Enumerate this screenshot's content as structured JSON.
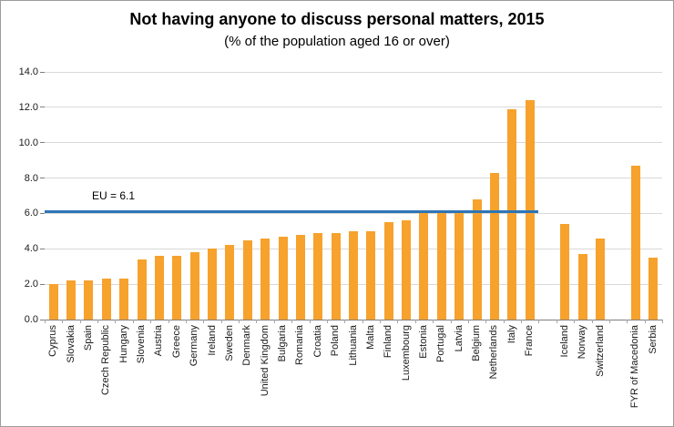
{
  "chart_data": {
    "type": "bar",
    "title": "Not having anyone to discuss personal matters, 2015",
    "subtitle": "(% of the population aged 16 or over)",
    "xlabel": "",
    "ylabel": "",
    "ylim": [
      0,
      14
    ],
    "ytick_step": 2,
    "ytick_labels": [
      "0.0",
      "2.0",
      "4.0",
      "6.0",
      "8.0",
      "10.0",
      "12.0",
      "14.0"
    ],
    "grid": true,
    "legend": "none",
    "bar_color": "#F6A22D",
    "categories": [
      "Cyprus",
      "Slovakia",
      "Spain",
      "Czech Republic",
      "Hungary",
      "Slovenia",
      "Austria",
      "Greece",
      "Germany",
      "Ireland",
      "Sweden",
      "Denmark",
      "United Kingdom",
      "Bulgaria",
      "Romania",
      "Croatia",
      "Poland",
      "Lithuania",
      "Malta",
      "Finland",
      "Luxembourg",
      "Estonia",
      "Portugal",
      "Latvia",
      "Belgium",
      "Netherlands",
      "Italy",
      "France",
      "",
      "Iceland",
      "Norway",
      "Switzerland",
      "",
      "FYR of Macedonia",
      "Serbia"
    ],
    "values": [
      2.0,
      2.2,
      2.2,
      2.3,
      2.3,
      3.4,
      3.6,
      3.6,
      3.8,
      4.0,
      4.2,
      4.5,
      4.6,
      4.7,
      4.8,
      4.9,
      4.9,
      5.0,
      5.0,
      5.5,
      5.6,
      6.0,
      6.0,
      6.1,
      6.8,
      8.3,
      11.9,
      12.4,
      null,
      5.4,
      3.7,
      4.6,
      null,
      8.7,
      3.5
    ],
    "eu_line": {
      "value": 6.1,
      "label": "EU = 6.1",
      "color": "#2E75B6",
      "span_slots": 28
    }
  }
}
